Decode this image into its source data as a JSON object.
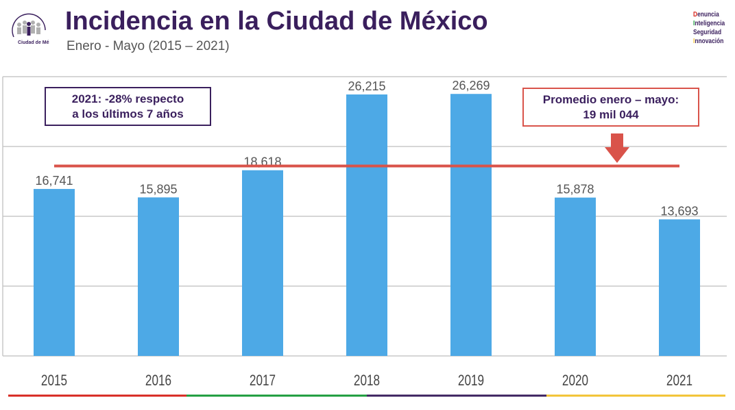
{
  "header": {
    "title": "Incidencia en la Ciudad de México",
    "subtitle": "Enero - Mayo (2015 – 2021)",
    "logo_text": "CONSEJO CIUDADANO para la Seguridad y Justicia Ciudad de México",
    "brand_lines": [
      {
        "initial": "D",
        "rest": "enuncia",
        "color": "#d7261e"
      },
      {
        "initial": "I",
        "rest": "nteligencia",
        "color": "#1a9b3a"
      },
      {
        "initial": "S",
        "rest": "eguridad",
        "color": "#3a1f5d"
      },
      {
        "initial": "I",
        "rest": "nnovación",
        "color": "#f2c230"
      }
    ]
  },
  "annotations": {
    "left_box": [
      "2021: -28% respecto",
      "a los últimos 7 años"
    ],
    "right_box": [
      "Promedio enero – mayo:",
      "19 mil 044"
    ]
  },
  "chart_data": {
    "type": "bar",
    "categories": [
      "2015",
      "2016",
      "2017",
      "2018",
      "2019",
      "2020",
      "2021"
    ],
    "values": [
      16741,
      15895,
      18618,
      26215,
      26269,
      15878,
      13693
    ],
    "data_labels": [
      "16,741",
      "15,895",
      "18,618",
      "26,215",
      "26,269",
      "15,878",
      "13,693"
    ],
    "average_line": 19044,
    "ylim": [
      0,
      28000
    ],
    "y_gridlines": [
      7000,
      14000,
      21000,
      28000
    ],
    "grid": true,
    "y_tick_labels_shown": false,
    "colors": {
      "bar": "#4da9e6",
      "average_line": "#d9534a",
      "arrow": "#d9534a",
      "gridline": "#c8c8c8",
      "footer_segments": [
        "#d7261e",
        "#1a9b3a",
        "#3a1f5d",
        "#f2c230"
      ]
    }
  }
}
